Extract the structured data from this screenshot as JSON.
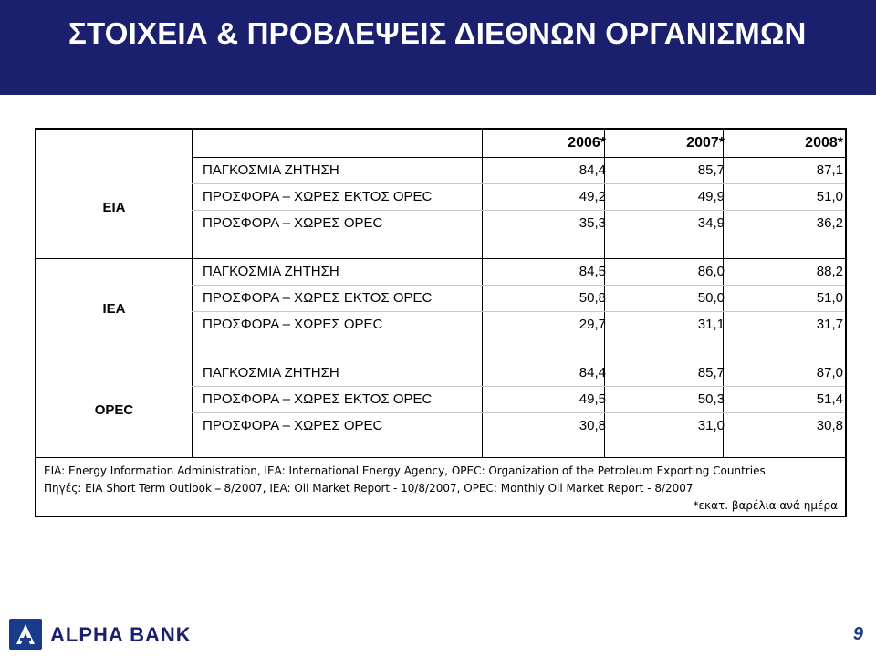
{
  "slide": {
    "title": "ΣΤΟΙΧΕΙΑ & ΠΡΟΒΛΕΨΕΙΣ ΔΙΕΘΝΩΝ ΟΡΓΑΝΙΣΜΩΝ",
    "page_number": "9",
    "brand_name": "ALPHA BANK"
  },
  "table": {
    "years": [
      "2006*",
      "2007*",
      "2008*"
    ],
    "groups": [
      {
        "org": "EIA",
        "rows": [
          {
            "label": "ΠΑΓΚΟΣΜΙΑ ΖΗΤΗΣΗ",
            "values": [
              "84,4",
              "85,7",
              "87,1"
            ]
          },
          {
            "label": "ΠΡΟΣΦΟΡΑ – ΧΩΡΕΣ ΕΚΤΟΣ OPEC",
            "values": [
              "49,2",
              "49,9",
              "51,0"
            ]
          },
          {
            "label": "ΠΡΟΣΦΟΡΑ – ΧΩΡΕΣ OPEC",
            "values": [
              "35,3",
              "34,9",
              "36,2"
            ]
          }
        ]
      },
      {
        "org": "IEA",
        "rows": [
          {
            "label": "ΠΑΓΚΟΣΜΙΑ ΖΗΤΗΣΗ",
            "values": [
              "84,5",
              "86,0",
              "88,2"
            ]
          },
          {
            "label": "ΠΡΟΣΦΟΡΑ – ΧΩΡΕΣ ΕΚΤΟΣ OPEC",
            "values": [
              "50,8",
              "50,0",
              "51,0"
            ]
          },
          {
            "label": "ΠΡΟΣΦΟΡΑ – ΧΩΡΕΣ OPEC",
            "values": [
              "29,7",
              "31,1",
              "31,7"
            ]
          }
        ]
      },
      {
        "org": "OPEC",
        "rows": [
          {
            "label": "ΠΑΓΚΟΣΜΙΑ ΖΗΤΗΣΗ",
            "values": [
              "84,4",
              "85,7",
              "87,0"
            ]
          },
          {
            "label": "ΠΡΟΣΦΟΡΑ – ΧΩΡΕΣ ΕΚΤΟΣ OPEC",
            "values": [
              "49,5",
              "50,3",
              "51,4"
            ]
          },
          {
            "label": "ΠΡΟΣΦΟΡΑ – ΧΩΡΕΣ OPEC",
            "values": [
              "30,8",
              "31,0",
              "30,8"
            ]
          }
        ]
      }
    ],
    "footnote_1": "EIA: Energy Information Administration, IEA: International Energy Agency, OPEC: Organization of the Petroleum Exporting Countries",
    "footnote_2": "Πηγές: EIA Short Term Outlook ⎯ 8/2007, IEA: Oil Market Report - 10/8/2007, OPEC: Monthly Oil Market Report - 8/2007",
    "unit_note": "*εκατ. βαρέλια ανά ημέρα"
  },
  "colors": {
    "title_band": "#1a1f6e",
    "title_text": "#ffffff",
    "brand_blue": "#1a3a8a"
  },
  "icons": {
    "logo": "alpha-bank-logo-icon"
  }
}
